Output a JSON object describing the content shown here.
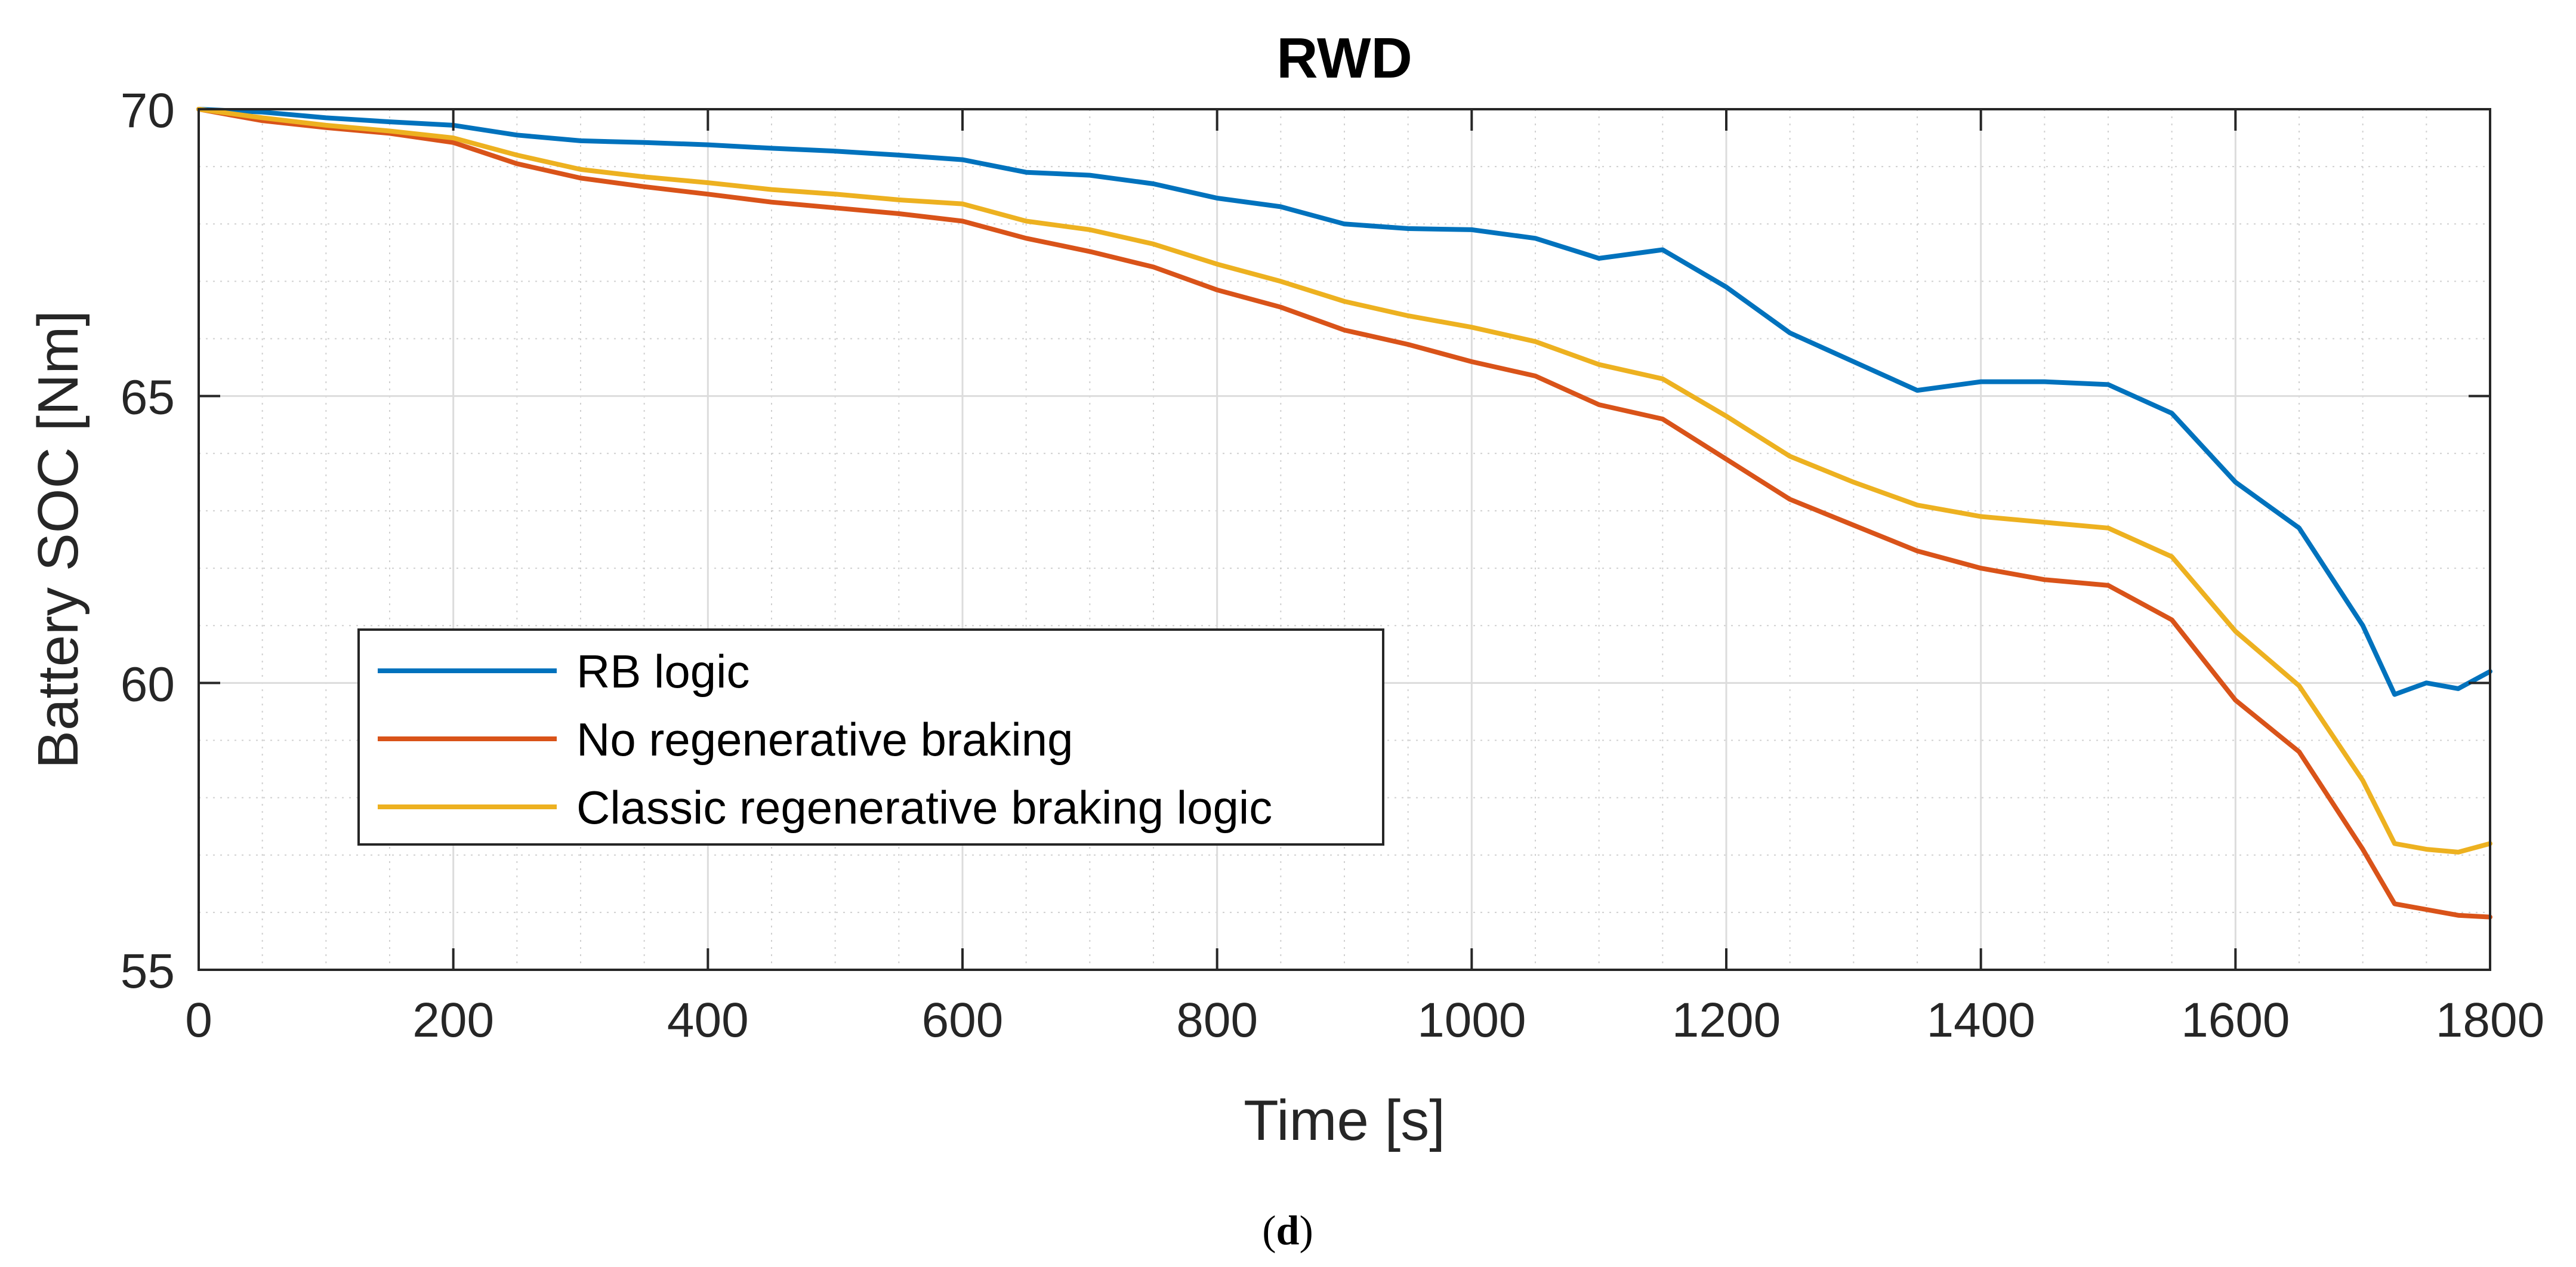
{
  "chart_data": {
    "type": "line",
    "title": "RWD",
    "xlabel": "Time [s]",
    "ylabel": "Battery SOC [Nm]",
    "xlim": [
      0,
      1800
    ],
    "ylim": [
      55,
      70
    ],
    "xticks": [
      0,
      200,
      400,
      600,
      800,
      1000,
      1200,
      1400,
      1600,
      1800
    ],
    "yticks": [
      55,
      60,
      65,
      70
    ],
    "xtick_labels": [
      "0",
      "200",
      "400",
      "600",
      "800",
      "1000",
      "1200",
      "1400",
      "1600",
      "1800"
    ],
    "ytick_labels": [
      "55",
      "60",
      "65",
      "70"
    ],
    "grid": true,
    "minor_grid": true,
    "legend_position": "lower-left",
    "series": [
      {
        "name": "RB logic",
        "color": "#0072BD",
        "x": [
          0,
          50,
          100,
          150,
          200,
          250,
          300,
          350,
          400,
          450,
          500,
          550,
          600,
          650,
          700,
          750,
          800,
          850,
          900,
          950,
          1000,
          1050,
          1100,
          1150,
          1200,
          1250,
          1300,
          1350,
          1400,
          1450,
          1500,
          1550,
          1600,
          1650,
          1700,
          1725,
          1750,
          1775,
          1800
        ],
        "y": [
          70.0,
          69.95,
          69.85,
          69.78,
          69.72,
          69.55,
          69.45,
          69.42,
          69.38,
          69.32,
          69.27,
          69.2,
          69.12,
          68.9,
          68.85,
          68.7,
          68.45,
          68.3,
          68.0,
          67.92,
          67.9,
          67.75,
          67.4,
          67.55,
          66.9,
          66.1,
          65.6,
          65.1,
          65.25,
          65.25,
          65.2,
          64.7,
          63.5,
          62.7,
          61.0,
          59.8,
          60.0,
          59.9,
          60.2
        ]
      },
      {
        "name": "No regenerative braking",
        "color": "#D95319",
        "x": [
          0,
          50,
          100,
          150,
          200,
          250,
          300,
          350,
          400,
          450,
          500,
          550,
          600,
          650,
          700,
          750,
          800,
          850,
          900,
          950,
          1000,
          1050,
          1100,
          1150,
          1200,
          1250,
          1300,
          1350,
          1400,
          1450,
          1500,
          1550,
          1600,
          1650,
          1700,
          1725,
          1750,
          1775,
          1800
        ],
        "y": [
          70.0,
          69.8,
          69.68,
          69.58,
          69.42,
          69.05,
          68.8,
          68.65,
          68.52,
          68.38,
          68.28,
          68.18,
          68.05,
          67.75,
          67.52,
          67.25,
          66.85,
          66.55,
          66.15,
          65.9,
          65.6,
          65.35,
          64.85,
          64.6,
          63.9,
          63.2,
          62.75,
          62.3,
          62.0,
          61.8,
          61.7,
          61.1,
          59.7,
          58.8,
          57.1,
          56.15,
          56.05,
          55.95,
          55.92
        ]
      },
      {
        "name": "Classic regenerative braking logic",
        "color": "#EDB120",
        "x": [
          0,
          50,
          100,
          150,
          200,
          250,
          300,
          350,
          400,
          450,
          500,
          550,
          600,
          650,
          700,
          750,
          800,
          850,
          900,
          950,
          1000,
          1050,
          1100,
          1150,
          1200,
          1250,
          1300,
          1350,
          1400,
          1450,
          1500,
          1550,
          1600,
          1650,
          1700,
          1725,
          1750,
          1775,
          1800
        ],
        "y": [
          70.0,
          69.85,
          69.72,
          69.62,
          69.5,
          69.2,
          68.95,
          68.82,
          68.72,
          68.6,
          68.52,
          68.42,
          68.35,
          68.05,
          67.9,
          67.65,
          67.3,
          67.0,
          66.65,
          66.4,
          66.2,
          65.95,
          65.55,
          65.3,
          64.65,
          63.95,
          63.5,
          63.1,
          62.9,
          62.8,
          62.7,
          62.2,
          60.9,
          59.95,
          58.3,
          57.2,
          57.1,
          57.05,
          57.2
        ]
      }
    ]
  },
  "caption": {
    "open": "(",
    "letter": "d",
    "close": ")"
  }
}
